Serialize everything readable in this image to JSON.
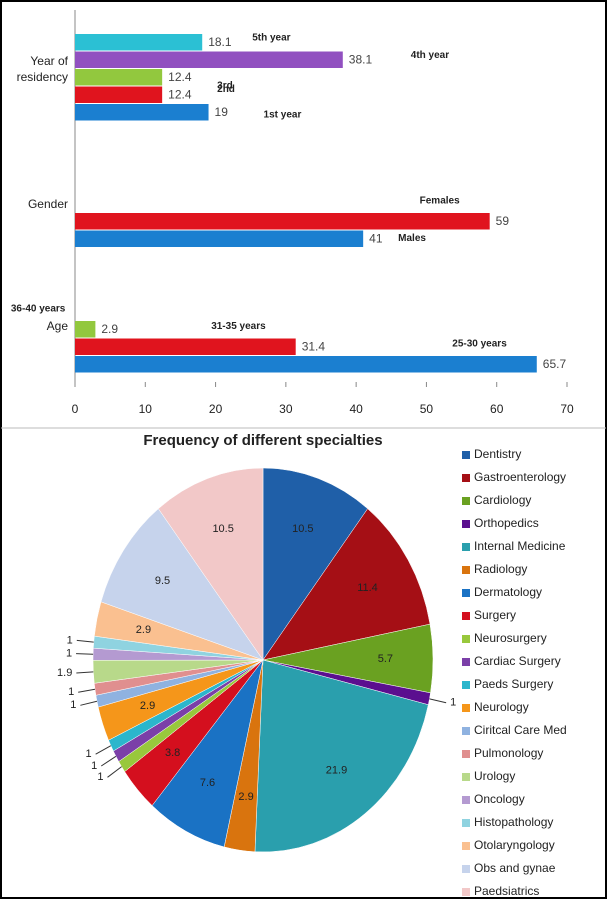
{
  "chart_data": [
    {
      "type": "hbar",
      "groups": [
        {
          "label": "Year of residency",
          "bars": [
            {
              "name": "5th year",
              "value": 18.1,
              "color": "#2bc0d4"
            },
            {
              "name": "4th year",
              "value": 38.1,
              "color": "#9150c0"
            },
            {
              "name": "3rd",
              "value": 12.4,
              "color": "#92c83e"
            },
            {
              "name": "2nd",
              "value": 12.4,
              "color": "#e0141e"
            },
            {
              "name": "1st year",
              "value": 19,
              "color": "#1b7fd0"
            }
          ]
        },
        {
          "label": "Gender",
          "bars": [
            {
              "name": "Females",
              "value": 59,
              "color": "#e0141e"
            },
            {
              "name": "Males",
              "value": 41,
              "color": "#1b7fd0"
            }
          ]
        },
        {
          "label": "Age",
          "bars": [
            {
              "name": "36-40 years",
              "value": 2.9,
              "color": "#92c83e"
            },
            {
              "name": "31-35 years",
              "value": 31.4,
              "color": "#e0141e"
            },
            {
              "name": "25-30 years",
              "value": 65.7,
              "color": "#1b7fd0"
            }
          ]
        }
      ],
      "xlim": [
        0,
        70
      ],
      "xticks": [
        0,
        10,
        20,
        30,
        40,
        50,
        60,
        70
      ]
    },
    {
      "type": "pie",
      "title": "Frequency of different specialties",
      "categories": [
        "Dentistry",
        "Gastroenterology",
        "Cardiology",
        "Orthopedics",
        "Internal Medicine",
        "Radiology",
        "Dermatology",
        "Surgery",
        "Neurosurgery",
        "Cardiac Surgery",
        "Paeds Surgery",
        "Neurology",
        "Ciritcal Care Med",
        "Pulmonology",
        "Urology",
        "Oncology",
        "Histopathology",
        "Otolaryngology",
        "Obs and gynae",
        "Paedsiatrics"
      ],
      "values": [
        10.5,
        11.4,
        5.7,
        1,
        21.9,
        2.9,
        7.6,
        3.8,
        1,
        1,
        1,
        2.9,
        1,
        1,
        1.9,
        1,
        1,
        2.9,
        9.5,
        10.5
      ],
      "colors": [
        "#1f5fa8",
        "#a50f15",
        "#6aa121",
        "#5b0f8f",
        "#2a9fad",
        "#d9740e",
        "#1a72c4",
        "#d40f1e",
        "#98c83c",
        "#7b3fa8",
        "#2bb6cc",
        "#f5961a",
        "#8fb2e0",
        "#e08f8f",
        "#b8d98a",
        "#b49ad1",
        "#8fd3e0",
        "#fac090",
        "#c6d3ec",
        "#f2c8c8"
      ]
    }
  ]
}
